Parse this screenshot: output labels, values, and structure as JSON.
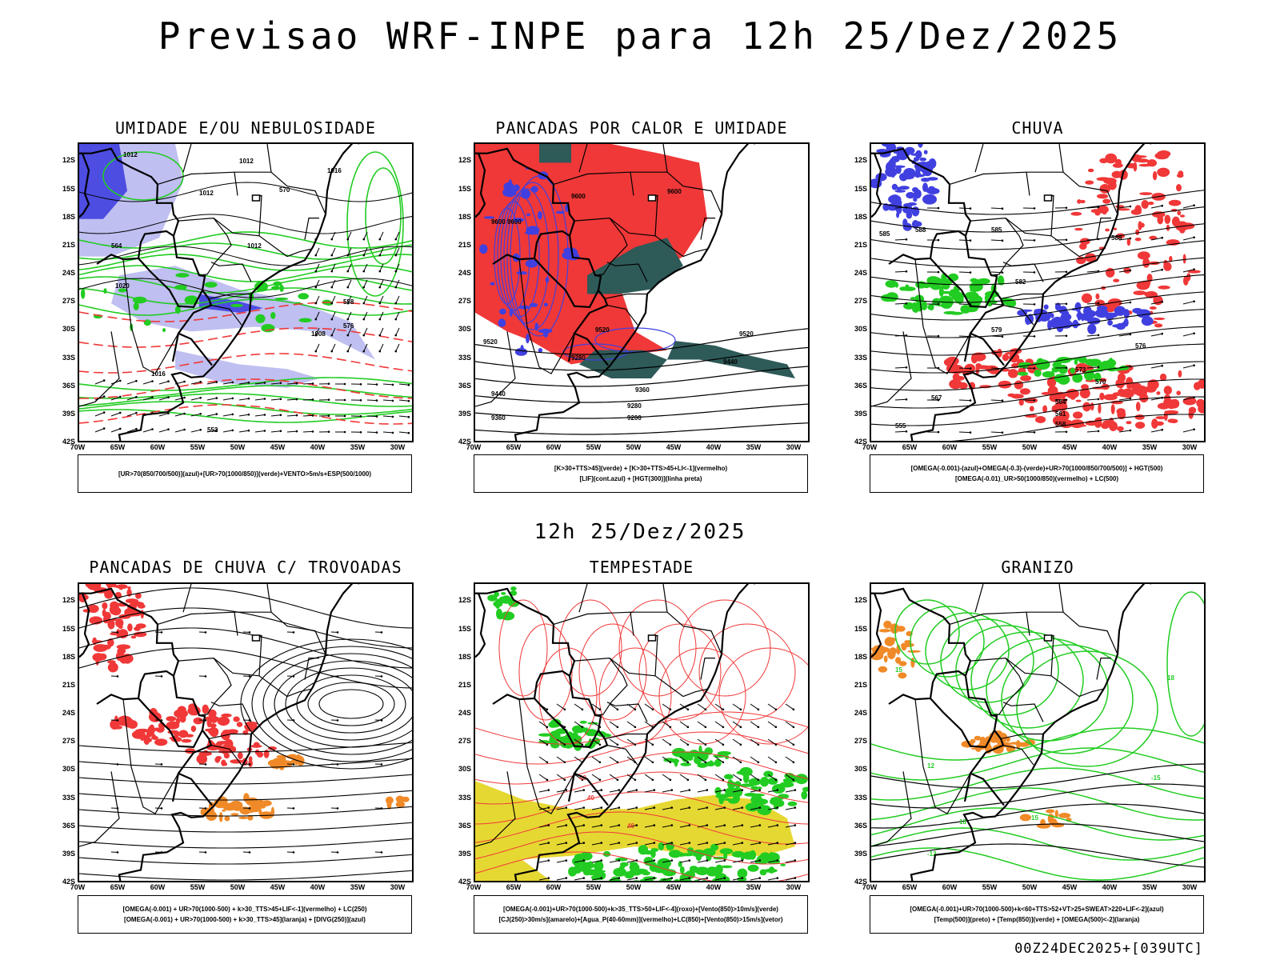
{
  "header": {
    "title": "Previsao WRF-INPE  para 12h 25/Dez/2025",
    "mid_time": "12h 25/Dez/2025",
    "run_info": "00Z24DEC2025+[039UTC]"
  },
  "axes": {
    "lat_labels": [
      "12S",
      "15S",
      "18S",
      "21S",
      "24S",
      "27S",
      "30S",
      "33S",
      "36S",
      "39S",
      "42S"
    ],
    "lon_labels": [
      "70W",
      "65W",
      "60W",
      "55W",
      "50W",
      "45W",
      "40W",
      "35W",
      "30W"
    ]
  },
  "panels": [
    {
      "title": "UMIDADE E/OU NEBULOSIDADE",
      "legend_lines": [
        "[UR>70(850/700/500)](azul)+[UR>70(1000/850)](verde)+VENTO>5m/s+ESP(500/1000)"
      ],
      "contour_labels": [
        "1012",
        "1012",
        "1012",
        "1012",
        "1016",
        "1008",
        "1020",
        "1016",
        "576",
        "570",
        "564",
        "558",
        "552"
      ]
    },
    {
      "title": "PANCADAS POR CALOR E UMIDADE",
      "legend_lines": [
        "[K>30+TTS>45](verde) + [K>30+TTS>45+LI<-1](vermelho)",
        "[LIF](cont.azul) + [HGT(300)](linha preta)"
      ],
      "contour_labels": [
        "9600",
        "9600",
        "9520",
        "9440",
        "9360",
        "9280",
        "9200",
        "9600",
        "9520",
        "9440",
        "9360",
        "9280",
        "9520",
        "9600"
      ]
    },
    {
      "title": "CHUVA",
      "legend_lines": [
        "[OMEGA(-0.001)-(azul)+OMEGA(-0.3)-(verde)+UR>70(1000/850/700/500)] + HGT(500)",
        "[OMEGA(-0.01)_UR>50(1000/850)(vermelho) + LC(500)"
      ],
      "contour_labels": [
        "588",
        "585",
        "582",
        "579",
        "576",
        "573",
        "570",
        "567",
        "564",
        "561",
        "558",
        "555",
        "588",
        "585"
      ]
    },
    {
      "title": "PANCADAS DE CHUVA C/ TROVOADAS",
      "legend_lines": [
        "[OMEGA(-0.001) + UR>70(1000-500) + k>30_TTS>45+LIF<-1](vermelho) + LC(250)",
        "[OMEGA(-0.001) + UR>70(1000-500) + k>30_TTS>45](laranja) + [DIVG(250)](azul)"
      ],
      "contour_labels": []
    },
    {
      "title": "TEMPESTADE",
      "legend_lines": [
        "[OMEGA(-0.001)+UR>70(1000-500)+k>35_TTS>50+LIF<-4](roxo)+[Vento(850)>10m/s](verde)",
        "[CJ(250)>30m/s](amarelo)+[Agua_P(40-60mm)](vermelho)+LC(850)+[Vento(850)>15m/s](vetor)"
      ],
      "contour_labels": [
        "40",
        "40",
        "40"
      ]
    },
    {
      "title": "GRANIZO",
      "legend_lines": [
        "[OMEGA(-0.001)+UR>70(1000-500)+k<60+TTS>52+VT>25+SWEAT>220+LIF<-2](azul)",
        "[Temp(500)](preto) + [Temp(850)](verde) + [OMEGA(500)<-2](laranja)"
      ],
      "contour_labels": [
        "15",
        "12",
        "15",
        "18",
        "-12",
        "-15",
        "18"
      ]
    }
  ],
  "colors": {
    "blue": "#4040e0",
    "lightblue": "#b8b8f0",
    "green": "#22cc22",
    "red": "#f03838",
    "darkteal": "#2e5a58",
    "yellow": "#e6d832",
    "orange": "#f08a28",
    "purple": "#a020f0"
  }
}
